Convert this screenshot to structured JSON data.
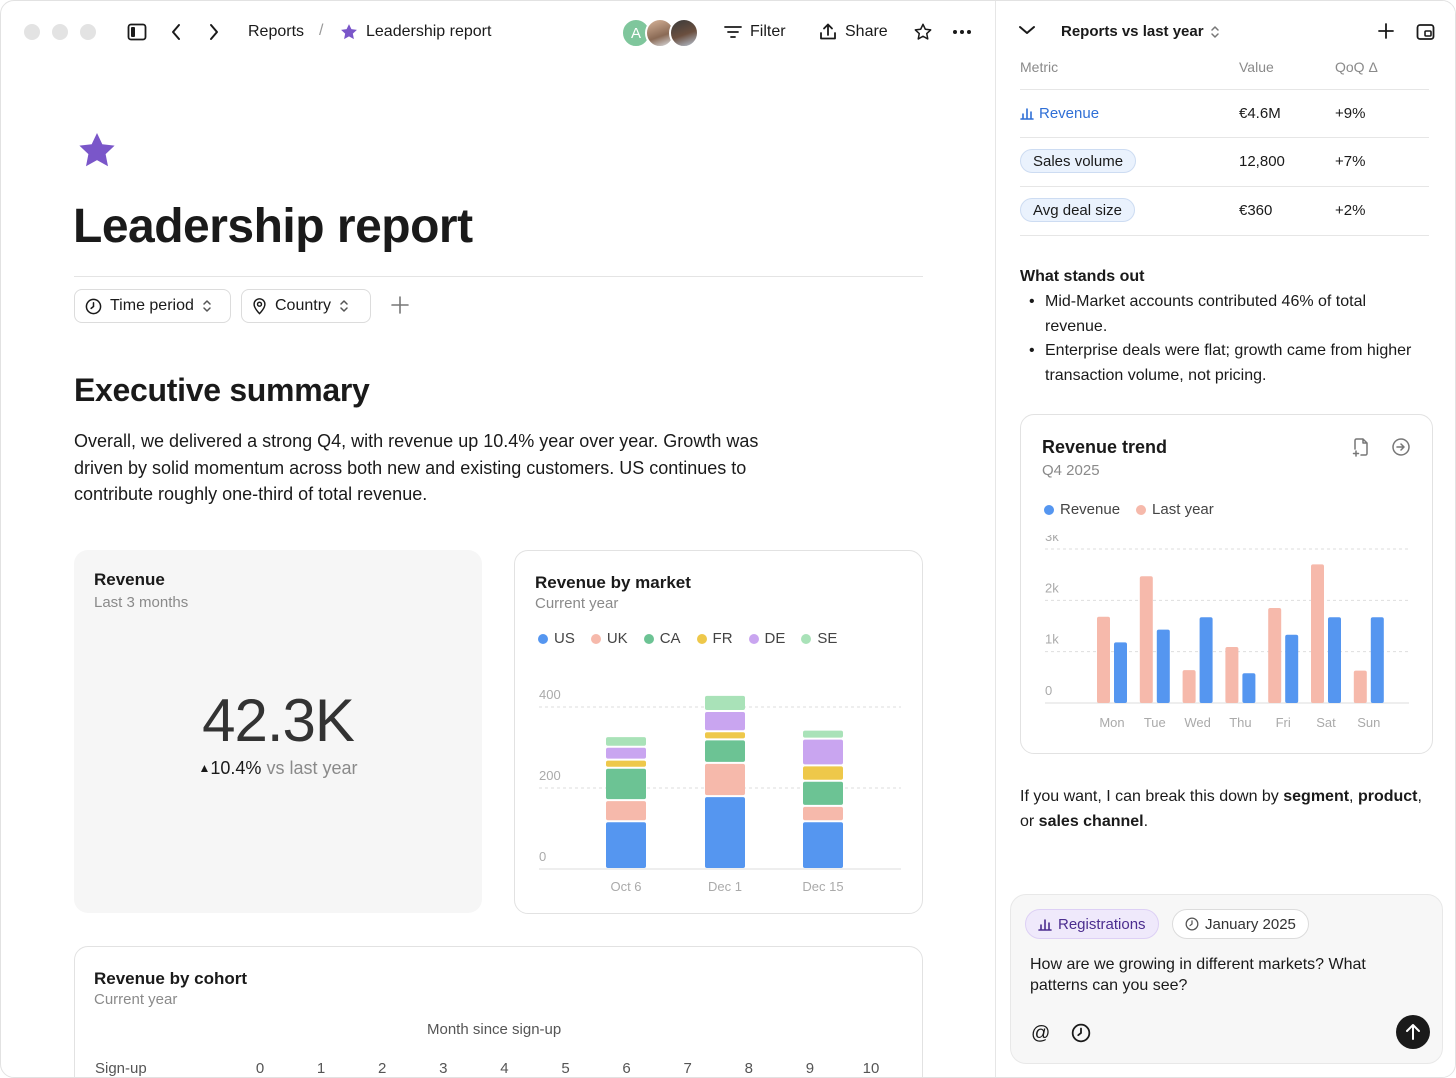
{
  "toolbar": {
    "breadcrumb_parent": "Reports",
    "breadcrumb_separator": "/",
    "breadcrumb_current": "Leadership report",
    "avatar_initial": "A",
    "filter_label": "Filter",
    "share_label": "Share"
  },
  "page": {
    "title": "Leadership report",
    "filters": [
      "Time period",
      "Country"
    ],
    "section_title": "Executive summary",
    "summary": "Overall, we delivered a strong Q4, with revenue up 10.4% year over year. Growth was driven by solid momentum across both new and existing customers. US continues to contribute roughly one-third of total revenue."
  },
  "revenue_card": {
    "title": "Revenue",
    "subtitle": "Last 3 months",
    "value": "42.3K",
    "delta_value": "10.4%",
    "delta_suffix": "vs last year"
  },
  "market_card": {
    "title": "Revenue by market",
    "subtitle": "Current year"
  },
  "cohort_card": {
    "title": "Revenue by cohort",
    "subtitle": "Current year",
    "axis_title": "Month since sign-up",
    "row_header": "Sign-up",
    "months": [
      "0",
      "1",
      "2",
      "3",
      "4",
      "5",
      "6",
      "7",
      "8",
      "9",
      "10"
    ]
  },
  "side": {
    "title": "Reports vs last year",
    "table": {
      "headers": [
        "Metric",
        "Value",
        "QoQ Δ"
      ],
      "rows": [
        {
          "metric": "Revenue",
          "value": "€4.6M",
          "delta": "+9%"
        },
        {
          "metric": "Sales volume",
          "value": "12,800",
          "delta": "+7%"
        },
        {
          "metric": "Avg deal size",
          "value": "€360",
          "delta": "+2%"
        }
      ]
    },
    "stands_out_title": "What stands out",
    "stands_out": [
      "Mid-Market accounts contributed 46% of total revenue.",
      "Enterprise deals were flat; growth came from higher transaction volume, not pricing."
    ],
    "trend_title": "Revenue trend",
    "trend_subtitle": "Q4 2025",
    "offer_prefix": "If you want, I can break this down by ",
    "offer_segment": "segment",
    "offer_sep1": ", ",
    "offer_product": "product",
    "offer_sep2": ",",
    "offer_or": " or ",
    "offer_channel": "sales channel",
    "offer_end": ".",
    "composer": {
      "chip_metric": "Registrations",
      "chip_date": "January 2025",
      "prompt": "How are we growing in different markets? What patterns can you see?"
    }
  },
  "colors": {
    "accent_purple": "#7a56c9",
    "blue": "#5596f0",
    "salmon": "#f6b9ab",
    "green": "#6cc394",
    "yellow": "#eec84a",
    "lavender": "#c9a5f0",
    "mint": "#a9e2b8"
  },
  "chart_data": [
    {
      "type": "bar",
      "stacked": true,
      "title": "Revenue by market",
      "subtitle": "Current year",
      "categories": [
        "Oct 6",
        "Dec 1",
        "Dec 15"
      ],
      "ylim": [
        0,
        400
      ],
      "yticks": [
        0,
        200,
        400
      ],
      "grid": true,
      "legend_position": "top-left",
      "series": [
        {
          "name": "US",
          "color": "#5596f0",
          "values": [
            118,
            180,
            118
          ]
        },
        {
          "name": "UK",
          "color": "#f6b9ab",
          "values": [
            52,
            82,
            38
          ]
        },
        {
          "name": "CA",
          "color": "#6cc394",
          "values": [
            80,
            58,
            62
          ]
        },
        {
          "name": "FR",
          "color": "#eec84a",
          "values": [
            20,
            20,
            38
          ]
        },
        {
          "name": "DE",
          "color": "#c9a5f0",
          "values": [
            32,
            50,
            66
          ]
        },
        {
          "name": "SE",
          "color": "#a9e2b8",
          "values": [
            26,
            40,
            22
          ]
        }
      ]
    },
    {
      "type": "bar",
      "title": "Revenue trend",
      "subtitle": "Q4 2025",
      "categories": [
        "Mon",
        "Tue",
        "Wed",
        "Thu",
        "Fri",
        "Sat",
        "Sun"
      ],
      "ylim": [
        0,
        3000
      ],
      "yticks": [
        0,
        1000,
        2000,
        3000
      ],
      "ytick_labels": [
        "0",
        "1k",
        "2k",
        "3k"
      ],
      "grid": true,
      "legend_position": "top-left",
      "series": [
        {
          "name": "Last year",
          "color": "#f6b9ab",
          "values": [
            1680,
            2470,
            640,
            1090,
            1850,
            2700,
            630
          ]
        },
        {
          "name": "Revenue",
          "color": "#5596f0",
          "values": [
            1180,
            1430,
            1670,
            580,
            1330,
            1670,
            1670
          ]
        }
      ]
    }
  ]
}
